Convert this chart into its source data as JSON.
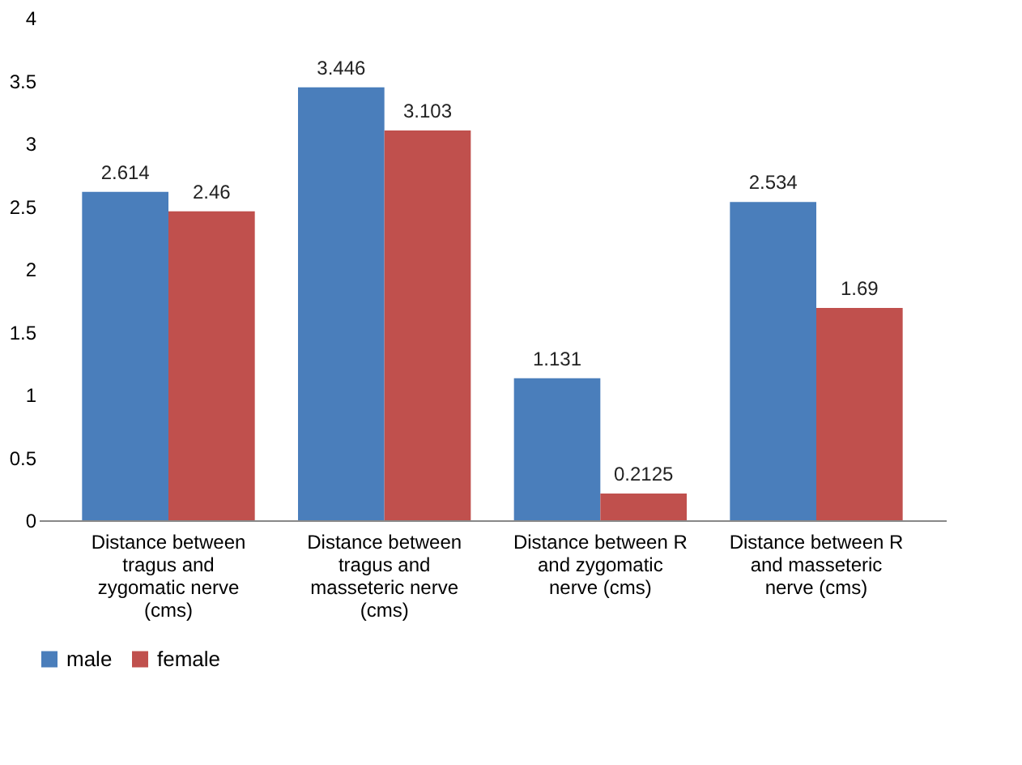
{
  "chart_data": {
    "type": "bar",
    "categories": [
      "Distance between tragus and zygomatic nerve (cms)",
      "Distance between tragus and masseteric nerve (cms)",
      "Distance between R and zygomatic nerve (cms)",
      "Distance between R and masseteric nerve (cms)"
    ],
    "series": [
      {
        "name": "male",
        "color": "#4a7ebb",
        "values": [
          2.614,
          3.446,
          1.131,
          2.534
        ]
      },
      {
        "name": "female",
        "color": "#c0504d",
        "values": [
          2.46,
          3.103,
          0.2125,
          1.69
        ]
      }
    ],
    "ylim": [
      0,
      4
    ],
    "yticks": [
      0,
      0.5,
      1,
      1.5,
      2,
      2.5,
      3,
      3.5,
      4
    ],
    "data_labels": true,
    "grid": false,
    "legend": "bottom"
  }
}
